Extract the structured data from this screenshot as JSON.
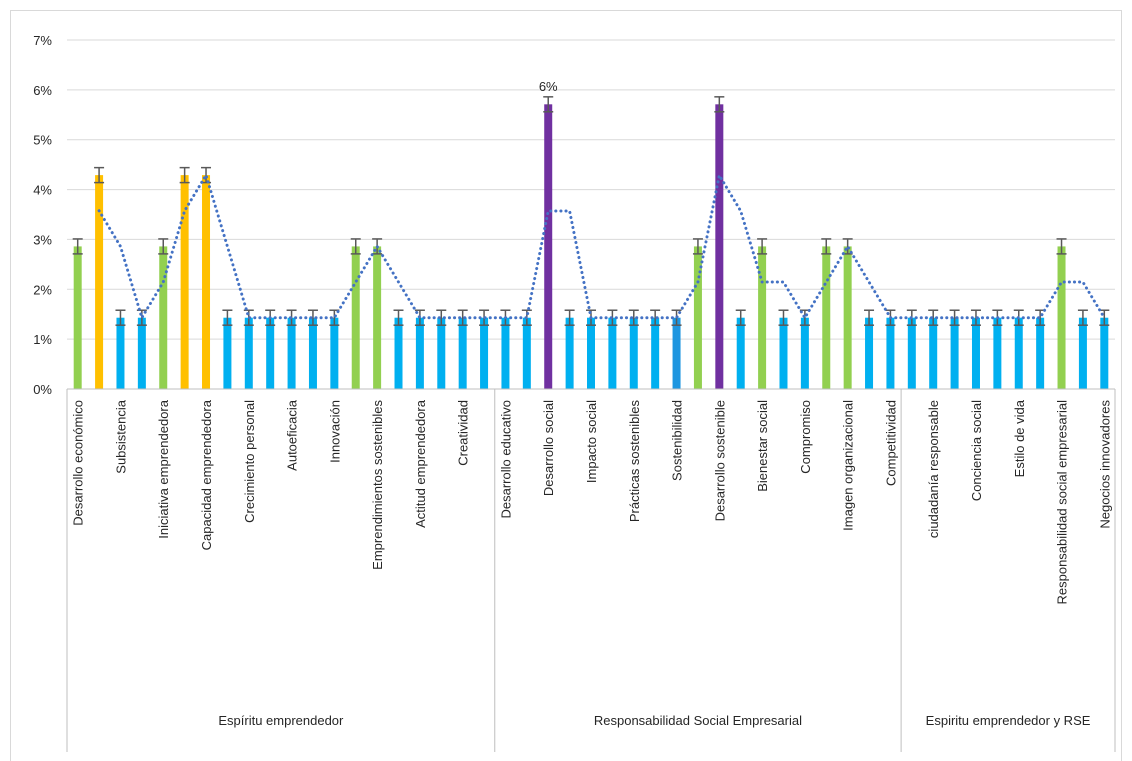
{
  "chart_data": {
    "type": "bar",
    "categories": [
      "Desarrollo económico",
      null,
      "Subsistencia",
      null,
      "Iniciativa emprendedora",
      null,
      "Capacidad emprendedora",
      null,
      "Crecimiento personal",
      null,
      "Autoeficacia",
      null,
      "Innovación",
      null,
      "Emprendimientos sostenibles",
      null,
      "Actitud emprendedora",
      null,
      "Creatividad",
      null,
      "Desarrollo educativo",
      null,
      "Desarrollo social",
      null,
      "Impacto social",
      null,
      "Prácticas sostenibles",
      null,
      "Sostenibilidad",
      null,
      "Desarrollo sostenible",
      null,
      "Bienestar social",
      null,
      "Compromiso",
      null,
      "Imagen organizacional",
      null,
      "Competitividad",
      null,
      "ciudadanía responsable",
      null,
      "Conciencia social",
      null,
      "Estilo de vida",
      null,
      "Responsabilidad social empresarial",
      null,
      "Negocios innovadores"
    ],
    "values": [
      2.86,
      4.29,
      1.43,
      1.43,
      2.86,
      4.29,
      4.29,
      1.43,
      1.43,
      1.43,
      1.43,
      1.43,
      1.43,
      2.86,
      2.86,
      1.43,
      1.43,
      1.43,
      1.43,
      1.43,
      1.43,
      1.43,
      5.71,
      1.43,
      1.43,
      1.43,
      1.43,
      1.43,
      1.43,
      2.86,
      5.71,
      1.43,
      2.86,
      1.43,
      1.43,
      2.86,
      2.86,
      1.43,
      1.43,
      1.43,
      1.43,
      1.43,
      1.43,
      1.43,
      1.43,
      1.43,
      2.86,
      1.43,
      1.43
    ],
    "value_labels": [
      null,
      null,
      null,
      null,
      null,
      null,
      null,
      null,
      null,
      null,
      null,
      null,
      null,
      null,
      null,
      null,
      null,
      null,
      null,
      null,
      null,
      null,
      "6%",
      null,
      null,
      null,
      null,
      null,
      null,
      null,
      null,
      null,
      null,
      null,
      null,
      null,
      null,
      null,
      null,
      null,
      null,
      null,
      null,
      null,
      null,
      null,
      null,
      null,
      null
    ],
    "colors": [
      "#92d050",
      "#ffc000",
      "#00b0f0",
      "#00b0f0",
      "#92d050",
      "#ffc000",
      "#ffc000",
      "#00b0f0",
      "#00b0f0",
      "#00b0f0",
      "#00b0f0",
      "#00b0f0",
      "#00b0f0",
      "#92d050",
      "#92d050",
      "#00b0f0",
      "#00b0f0",
      "#00b0f0",
      "#00b0f0",
      "#00b0f0",
      "#00b0f0",
      "#00b0f0",
      "#7030a0",
      "#00b0f0",
      "#00b0f0",
      "#00b0f0",
      "#00b0f0",
      "#00b0f0",
      "#1e96e0",
      "#92d050",
      "#7030a0",
      "#00b0f0",
      "#92d050",
      "#00b0f0",
      "#00b0f0",
      "#92d050",
      "#92d050",
      "#00b0f0",
      "#00b0f0",
      "#00b0f0",
      "#00b0f0",
      "#00b0f0",
      "#00b0f0",
      "#00b0f0",
      "#00b0f0",
      "#00b0f0",
      "#92d050",
      "#00b0f0",
      "#00b0f0"
    ],
    "groups": [
      {
        "name": "Espíritu emprendedor",
        "start": 0,
        "end": 19
      },
      {
        "name": "Responsabilidad Social Empresarial",
        "start": 20,
        "end": 38
      },
      {
        "name": "Espiritu emprendedor y RSE",
        "start": 39,
        "end": 48
      }
    ],
    "error_bars": {
      "value": 0.15,
      "color": "#595959"
    },
    "trendline": {
      "kind": "moving_average",
      "period": 2,
      "color": "#4472c4"
    },
    "ylim": [
      0,
      7
    ],
    "yticks": [
      {
        "value": 0,
        "label": "0%"
      },
      {
        "value": 1,
        "label": "1%"
      },
      {
        "value": 2,
        "label": "2%"
      },
      {
        "value": 3,
        "label": "3%"
      },
      {
        "value": 4,
        "label": "4%"
      },
      {
        "value": 5,
        "label": "5%"
      },
      {
        "value": 6,
        "label": "6%"
      },
      {
        "value": 7,
        "label": "7%"
      }
    ],
    "grid": true
  }
}
